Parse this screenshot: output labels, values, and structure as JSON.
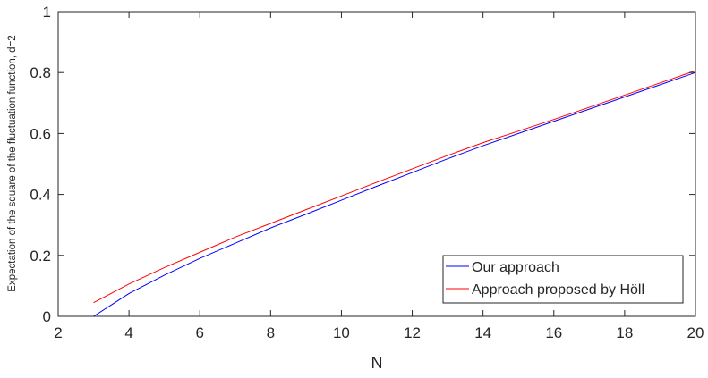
{
  "chart_data": {
    "type": "line",
    "title": "",
    "xlabel": "N",
    "ylabel": "Expectation of the square of the fluctuation function, d=2",
    "xlim": [
      2,
      20
    ],
    "ylim": [
      0,
      1
    ],
    "xticks": [
      2,
      4,
      6,
      8,
      10,
      12,
      14,
      16,
      18,
      20
    ],
    "yticks": [
      0,
      0.2,
      0.4,
      0.6,
      0.8,
      1
    ],
    "ytick_labels": [
      "0",
      "0.2",
      "0.4",
      "0.6",
      "0.8",
      "1"
    ],
    "grid": false,
    "legend_position": "bottom-right",
    "series": [
      {
        "name": "Our approach",
        "color": "#0000ff",
        "x": [
          3,
          4,
          5,
          6,
          7,
          8,
          9,
          10,
          11,
          12,
          13,
          14,
          15,
          16,
          17,
          18,
          19,
          20
        ],
        "y": [
          0.0,
          0.075,
          0.135,
          0.19,
          0.24,
          0.29,
          0.335,
          0.381,
          0.427,
          0.472,
          0.517,
          0.56,
          0.6,
          0.64,
          0.68,
          0.72,
          0.76,
          0.8
        ]
      },
      {
        "name": "Approach proposed by Höll",
        "color": "#ff0000",
        "x": [
          3,
          4,
          5,
          6,
          7,
          8,
          9,
          10,
          11,
          12,
          13,
          14,
          15,
          16,
          17,
          18,
          19,
          20
        ],
        "y": [
          0.045,
          0.106,
          0.16,
          0.21,
          0.26,
          0.305,
          0.35,
          0.395,
          0.44,
          0.484,
          0.528,
          0.57,
          0.608,
          0.646,
          0.686,
          0.726,
          0.766,
          0.806
        ]
      }
    ]
  }
}
